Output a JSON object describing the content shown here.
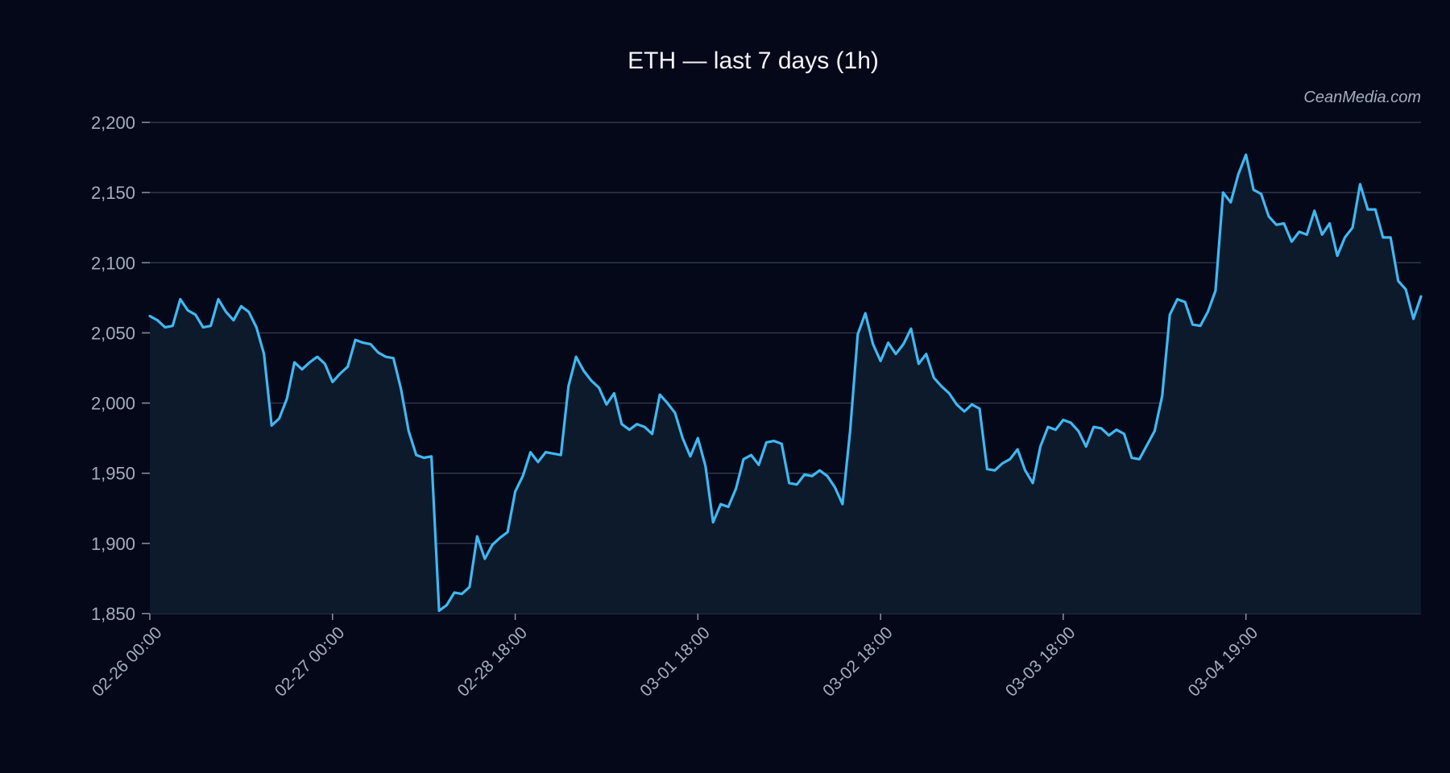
{
  "chart_data": {
    "type": "area",
    "title": "ETH — last 7 days (1h)",
    "watermark": "CeanMedia.com",
    "xlabel": "",
    "ylabel": "",
    "ylim": [
      1850,
      2200
    ],
    "y_ticks": [
      1850,
      1900,
      1950,
      2000,
      2050,
      2100,
      2150,
      2200
    ],
    "y_tick_labels": [
      "1,850",
      "1,900",
      "1,950",
      "2,000",
      "2,050",
      "2,100",
      "2,150",
      "2,200"
    ],
    "x_tick_labels": [
      "02-26 00:00",
      "02-27 00:00",
      "02-28 18:00",
      "03-01 18:00",
      "03-02 18:00",
      "03-03 18:00",
      "03-04 19:00"
    ],
    "x_tick_index": [
      0,
      24,
      48,
      72,
      96,
      120,
      144
    ],
    "grid": true,
    "colors": {
      "line": "#3fb8f2",
      "fill": "#0c1a2c",
      "background": "#040818",
      "grid": "#3a4255"
    },
    "series": [
      {
        "values": [
          2062,
          2059,
          2054,
          2055,
          2074,
          2066,
          2063,
          2054,
          2055,
          2074,
          2065,
          2059,
          2069,
          2065,
          2054,
          2035,
          1984,
          1989,
          2003,
          2029,
          2024,
          2029,
          2033,
          2028,
          2015,
          2021,
          2026,
          2045,
          2043,
          2042,
          2036,
          2033,
          2032,
          2010,
          1980,
          1963,
          1961,
          1962,
          1852,
          1856,
          1865,
          1864,
          1869,
          1905,
          1889,
          1899,
          1904,
          1908,
          1937,
          1948,
          1965,
          1958,
          1965,
          1964,
          1963,
          2012,
          2033,
          2023,
          2016,
          2011,
          1999,
          2007,
          1985,
          1981,
          1985,
          1983,
          1978,
          2006,
          2000,
          1993,
          1975,
          1962,
          1975,
          1955,
          1915,
          1928,
          1926,
          1939,
          1960,
          1963,
          1956,
          1972,
          1973,
          1971,
          1943,
          1942,
          1949,
          1948,
          1952,
          1948,
          1940,
          1928,
          1980,
          2049,
          2064,
          2042,
          2030,
          2043,
          2035,
          2042,
          2053,
          2028,
          2035,
          2018,
          2012,
          2007,
          1999,
          1994,
          1999,
          1996,
          1953,
          1952,
          1957,
          1960,
          1967,
          1952,
          1943,
          1969,
          1983,
          1981,
          1988,
          1986,
          1980,
          1969,
          1983,
          1982,
          1977,
          1981,
          1978,
          1961,
          1960,
          1970,
          1980,
          2005,
          2063,
          2074,
          2072,
          2056,
          2055,
          2065,
          2080,
          2150,
          2143,
          2163,
          2177,
          2152,
          2149,
          2133,
          2127,
          2128,
          2115,
          2122,
          2120,
          2137,
          2120,
          2128,
          2105,
          2118,
          2125,
          2156,
          2138,
          2138,
          2118,
          2118,
          2087,
          2081,
          2060,
          2076
        ]
      }
    ]
  }
}
